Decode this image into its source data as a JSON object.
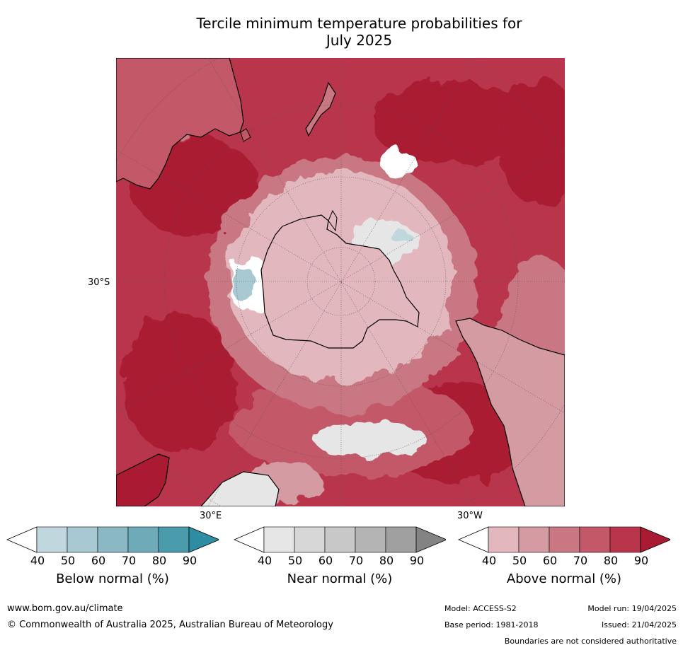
{
  "title_line1": "Tercile minimum temperature probabilities for",
  "title_line2": "July 2025",
  "map": {
    "projection": "south-polar-stereographic",
    "lat_label": "30°S",
    "lon_label_left": "30°E",
    "lon_label_right": "30°W",
    "ocean_base_color": "#bb2244"
  },
  "colorbars": [
    {
      "label": "Below normal (%)",
      "ticks": [
        "40",
        "50",
        "60",
        "70",
        "80",
        "90"
      ],
      "colors": [
        "#ffffff",
        "#bfd7dd",
        "#a8c9d1",
        "#8bb8c5",
        "#6eaab8",
        "#4a9cad",
        "#2e8da2"
      ]
    },
    {
      "label": "Near normal (%)",
      "ticks": [
        "40",
        "50",
        "60",
        "70",
        "80",
        "90"
      ],
      "colors": [
        "#ffffff",
        "#e6e6e6",
        "#d7d7d7",
        "#c8c8c8",
        "#b4b4b4",
        "#a0a0a0",
        "#838383"
      ]
    },
    {
      "label": "Above normal (%)",
      "ticks": [
        "40",
        "50",
        "60",
        "70",
        "80",
        "90"
      ],
      "colors": [
        "#ffffff",
        "#e2b8be",
        "#d59ba3",
        "#c87783",
        "#c25868",
        "#b8354c",
        "#aa1a33"
      ]
    }
  ],
  "footer": {
    "url": "www.bom.gov.au/climate",
    "copyright": "© Commonwealth of Australia 2025, Australian Bureau of Meteorology",
    "model": "Model: ACCESS-S2",
    "base_period": "Base period: 1981-2018",
    "model_run": "Model run: 19/04/2025",
    "issued": "Issued: 21/04/2025",
    "disclaimer": "Boundaries are not considered authoritative"
  }
}
